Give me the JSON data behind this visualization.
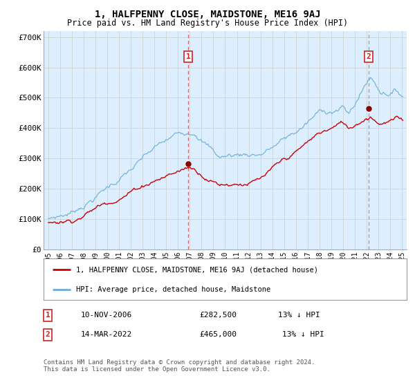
{
  "title": "1, HALFPENNY CLOSE, MAIDSTONE, ME16 9AJ",
  "subtitle": "Price paid vs. HM Land Registry's House Price Index (HPI)",
  "ylim": [
    0,
    720000
  ],
  "sale1_date": 2006.88,
  "sale1_price": 282500,
  "sale1_label": "1",
  "sale2_date": 2022.17,
  "sale2_price": 465000,
  "sale2_label": "2",
  "hpi_color": "#6baed6",
  "price_color": "#cc0000",
  "vline1_color": "#cc6666",
  "vline2_color": "#9999bb",
  "plot_bg_color": "#ddeeff",
  "legend_label1": "1, HALFPENNY CLOSE, MAIDSTONE, ME16 9AJ (detached house)",
  "legend_label2": "HPI: Average price, detached house, Maidstone",
  "annotation1_date": "10-NOV-2006",
  "annotation1_price": "£282,500",
  "annotation1_pct": "13% ↓ HPI",
  "annotation2_date": "14-MAR-2022",
  "annotation2_price": "£465,000",
  "annotation2_pct": "13% ↓ HPI",
  "footer": "Contains HM Land Registry data © Crown copyright and database right 2024.\nThis data is licensed under the Open Government Licence v3.0.",
  "background_color": "#ffffff",
  "grid_color": "#cccccc"
}
